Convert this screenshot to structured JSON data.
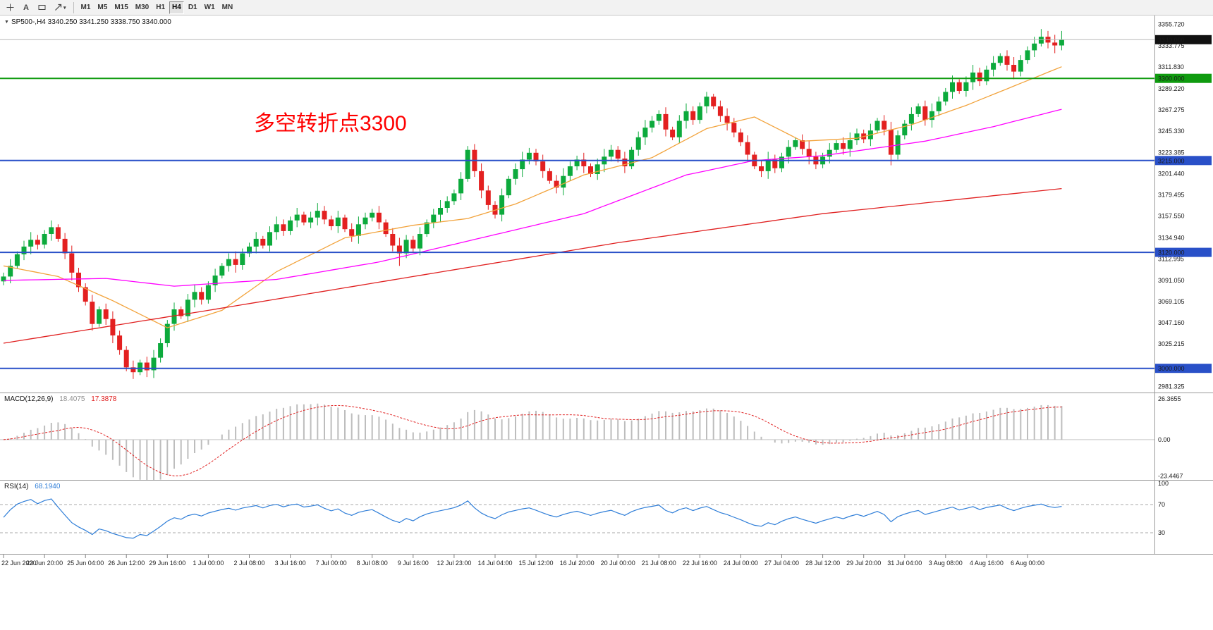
{
  "toolbar": {
    "tools": [
      {
        "name": "crosshair-tool",
        "glyph": "crosshair"
      },
      {
        "name": "text-tool",
        "glyph": "A"
      },
      {
        "name": "shapes-tool",
        "glyph": "rect"
      },
      {
        "name": "arrow-tool",
        "glyph": "arrow",
        "dropdown": true
      }
    ],
    "timeframes": [
      "M1",
      "M5",
      "M15",
      "M30",
      "H1",
      "H4",
      "D1",
      "W1",
      "MN"
    ],
    "active_timeframe": "H4"
  },
  "chart": {
    "title": "SP500-,H4  3340.250 3341.250 3338.750 3340.000",
    "annotation": "多空转折点3300",
    "annotation_color": "#ff0000"
  },
  "price_axis": {
    "ticks": [
      "3355.720",
      "3333.775",
      "3311.830",
      "3289.220",
      "3267.275",
      "3245.330",
      "3223.385",
      "3201.440",
      "3179.495",
      "3157.550",
      "3134.940",
      "3112.995",
      "3091.050",
      "3069.105",
      "3047.160",
      "3025.215",
      "2981.325"
    ],
    "tags": [
      {
        "label": "3340.000",
        "price": 3340.0,
        "bg": "#111111"
      },
      {
        "label": "3300.000",
        "price": 3300.0,
        "bg": "#0f9b0f"
      },
      {
        "label": "3215.000",
        "price": 3215.0,
        "bg": "#2950c8"
      },
      {
        "label": "3120.000",
        "price": 3120.0,
        "bg": "#2950c8"
      },
      {
        "label": "3000.000",
        "price": 3000.0,
        "bg": "#2950c8"
      }
    ]
  },
  "chart_data": {
    "type": "candlestick",
    "symbol": "SP500",
    "timeframe": "H4",
    "current_price": 3340.0,
    "ylim": [
      2975,
      3365
    ],
    "closes": [
      3095,
      3106,
      3118,
      3126,
      3133,
      3128,
      3139,
      3146,
      3134,
      3119,
      3099,
      3084,
      3069,
      3046,
      3061,
      3051,
      3034,
      3019,
      3001,
      2996,
      3006,
      2998,
      3011,
      3026,
      3046,
      3061,
      3054,
      3071,
      3079,
      3071,
      3086,
      3096,
      3106,
      3113,
      3107,
      3119,
      3126,
      3134,
      3127,
      3141,
      3149,
      3142,
      3153,
      3159,
      3151,
      3156,
      3163,
      3154,
      3147,
      3156,
      3144,
      3137,
      3149,
      3156,
      3161,
      3151,
      3139,
      3127,
      3119,
      3133,
      3124,
      3139,
      3151,
      3159,
      3166,
      3173,
      3181,
      3196,
      3226,
      3204,
      3184,
      3169,
      3159,
      3179,
      3196,
      3206,
      3216,
      3223,
      3214,
      3204,
      3194,
      3187,
      3199,
      3209,
      3216,
      3209,
      3201,
      3211,
      3219,
      3226,
      3217,
      3209,
      3226,
      3239,
      3249,
      3256,
      3263,
      3247,
      3239,
      3256,
      3266,
      3257,
      3271,
      3281,
      3271,
      3261,
      3254,
      3244,
      3234,
      3221,
      3209,
      3204,
      3216,
      3207,
      3219,
      3229,
      3236,
      3227,
      3219,
      3211,
      3219,
      3226,
      3233,
      3227,
      3236,
      3243,
      3237,
      3246,
      3256,
      3247,
      3221,
      3241,
      3253,
      3263,
      3271,
      3257,
      3266,
      3276,
      3286,
      3296,
      3287,
      3296,
      3306,
      3297,
      3309,
      3316,
      3323,
      3314,
      3307,
      3319,
      3329,
      3336,
      3343,
      3337,
      3334,
      3340
    ],
    "first_open": 3090,
    "wick_cycle": [
      4,
      7,
      3,
      6,
      8,
      5
    ],
    "special_wicks": {
      "19": {
        "low": 2989
      },
      "21": {
        "low": 2991
      },
      "58": {
        "low": 3106
      },
      "68": {
        "high": 3230
      },
      "103": {
        "high": 3286
      },
      "130": {
        "low": 3210
      },
      "152": {
        "high": 3351
      },
      "155": {
        "high": 3349
      }
    },
    "up_color": "#0caa3c",
    "down_color": "#e32020",
    "hlines": [
      {
        "name": "current-price-line",
        "price": 3340.0,
        "color": "#b8b8b8",
        "width": 1
      },
      {
        "name": "green-level-3300",
        "price": 3300.0,
        "color": "#0f9b0f",
        "width": 2
      },
      {
        "name": "blue-level-3215",
        "price": 3215.0,
        "color": "#2950c8",
        "width": 2
      },
      {
        "name": "blue-level-3120",
        "price": 3120.0,
        "color": "#2950c8",
        "width": 2
      },
      {
        "name": "blue-level-3000",
        "price": 3000.0,
        "color": "#2950c8",
        "width": 2
      }
    ],
    "moving_averages": [
      {
        "name": "ma-fast",
        "color": "#f2a33c",
        "points": [
          [
            0,
            3106
          ],
          [
            8,
            3095
          ],
          [
            16,
            3070
          ],
          [
            24,
            3042
          ],
          [
            32,
            3060
          ],
          [
            40,
            3100
          ],
          [
            50,
            3135
          ],
          [
            60,
            3148
          ],
          [
            68,
            3155
          ],
          [
            75,
            3170
          ],
          [
            85,
            3200
          ],
          [
            95,
            3218
          ],
          [
            103,
            3248
          ],
          [
            110,
            3260
          ],
          [
            117,
            3235
          ],
          [
            125,
            3238
          ],
          [
            133,
            3252
          ],
          [
            141,
            3272
          ],
          [
            148,
            3292
          ],
          [
            155,
            3312
          ]
        ]
      },
      {
        "name": "ma-mid",
        "color": "#ff00ff",
        "points": [
          [
            0,
            3091
          ],
          [
            15,
            3093
          ],
          [
            25,
            3085
          ],
          [
            40,
            3092
          ],
          [
            55,
            3110
          ],
          [
            70,
            3135
          ],
          [
            85,
            3160
          ],
          [
            100,
            3200
          ],
          [
            110,
            3215
          ],
          [
            120,
            3220
          ],
          [
            135,
            3235
          ],
          [
            145,
            3250
          ],
          [
            155,
            3268
          ]
        ]
      },
      {
        "name": "ma-slow",
        "color": "#e02020",
        "points": [
          [
            0,
            3026
          ],
          [
            30,
            3060
          ],
          [
            60,
            3095
          ],
          [
            90,
            3130
          ],
          [
            120,
            3160
          ],
          [
            155,
            3186
          ]
        ]
      }
    ],
    "x_tick_labels": [
      "22 Jun 2020",
      "23 Jun 20:00",
      "25 Jun 04:00",
      "26 Jun 12:00",
      "29 Jun 16:00",
      "1 Jul 00:00",
      "2 Jul 08:00",
      "3 Jul 16:00",
      "7 Jul 00:00",
      "8 Jul 08:00",
      "9 Jul 16:00",
      "12 Jul 23:00",
      "14 Jul 04:00",
      "15 Jul 12:00",
      "16 Jul 20:00",
      "20 Jul 00:00",
      "21 Jul 08:00",
      "22 Jul 16:00",
      "24 Jul 00:00",
      "27 Jul 04:00",
      "28 Jul 12:00",
      "29 Jul 20:00",
      "31 Jul 04:00",
      "3 Aug 08:00",
      "4 Aug 16:00",
      "6 Aug 00:00"
    ],
    "bars_per_tick": 6,
    "indicators": {
      "macd": {
        "label": "MACD(12,26,9)",
        "value_main": "18.4075",
        "value_signal": "17.3878",
        "fast": 12,
        "slow": 26,
        "signal": 9,
        "ylim": [
          -26,
          30
        ],
        "axis_ticks": [
          "26.3655",
          "0.00",
          "-23.4467"
        ],
        "axis_values": [
          26.3655,
          0,
          -23.4467
        ],
        "histogram_color": "#bdbdbd",
        "signal_color": "#e02020"
      },
      "rsi": {
        "label": "RSI(14)",
        "value": "68.1940",
        "period": 14,
        "ylim": [
          0,
          104
        ],
        "levels": [
          70,
          30
        ],
        "axis_ticks": [
          "100",
          "70",
          "30"
        ],
        "axis_values": [
          100,
          70,
          30
        ],
        "line_color": "#2f7ed8",
        "level_color": "#aaaaaa"
      }
    }
  }
}
